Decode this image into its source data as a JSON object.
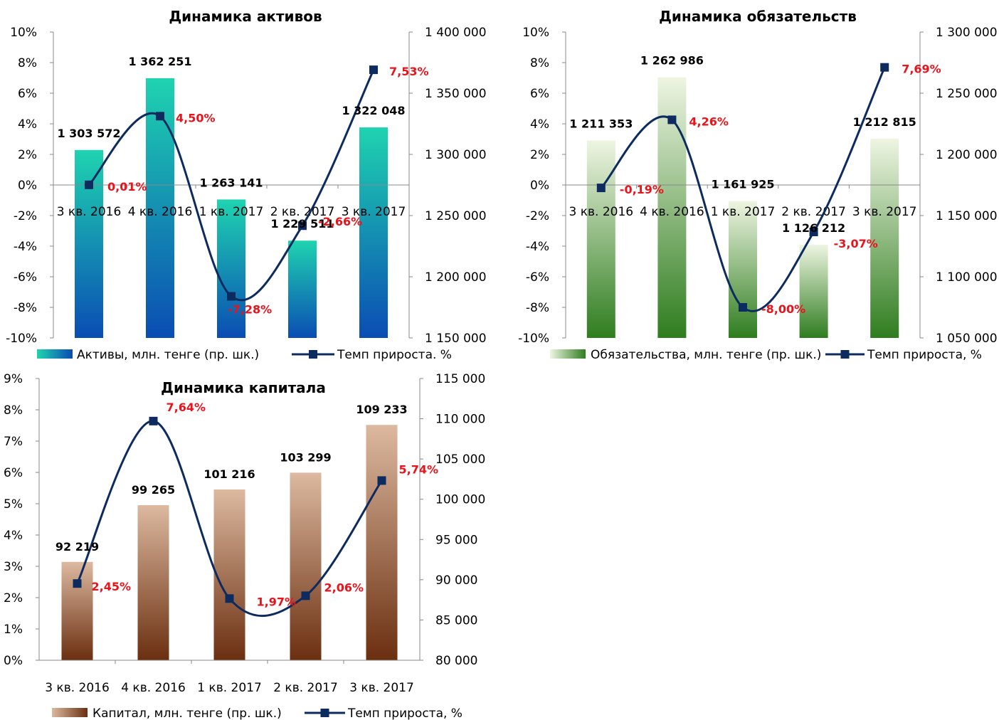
{
  "chart_data": [
    {
      "id": "assets",
      "type": "bar",
      "title": "Динамика активов",
      "categories": [
        "3 кв. 2016",
        "4 кв. 2016",
        "1 кв. 2017",
        "2 кв. 2017",
        "3 кв. 2017"
      ],
      "bar_series": {
        "name": "Активы, млн. тенге (пр. шк.)",
        "values": [
          1303572,
          1362251,
          1263141,
          1229511,
          1322048
        ],
        "labels": [
          "1 303 572",
          "1 362 251",
          "1 263 141",
          "1 229 511",
          "1 322 048"
        ],
        "axis": "right",
        "colors": [
          "#1fd3b0",
          "#0a4db3"
        ]
      },
      "line_series": {
        "name": "Темп прироста. %",
        "values": [
          0.01,
          4.5,
          -7.28,
          -2.66,
          7.53
        ],
        "labels": [
          "0,01%",
          "4,50%",
          "-7,28%",
          "-2,66%",
          "7,53%"
        ],
        "axis": "left",
        "color": "#0d2b5e"
      },
      "y_left": {
        "min": -10,
        "max": 10,
        "ticks": [
          "-10%",
          "-8%",
          "-6%",
          "-4%",
          "-2%",
          "0%",
          "2%",
          "4%",
          "6%",
          "8%",
          "10%"
        ]
      },
      "y_right": {
        "min": 1150000,
        "max": 1400000,
        "ticks": [
          "1 150 000",
          "1 200 000",
          "1 250 000",
          "1 300 000",
          "1 350 000",
          "1 400 000"
        ]
      },
      "category_axis_at": 0,
      "legend_position": "bottom"
    },
    {
      "id": "liabilities",
      "type": "bar",
      "title": "Динамика обязательств",
      "categories": [
        "3 кв. 2016",
        "4 кв. 2016",
        "1 кв. 2017",
        "2 кв. 2017",
        "3 кв. 2017"
      ],
      "bar_series": {
        "name": "Обязательства, млн. тенге (пр. шк.)",
        "values": [
          1211353,
          1262986,
          1161925,
          1126212,
          1212815
        ],
        "labels": [
          "1 211 353",
          "1 262 986",
          "1 161 925",
          "1 126 212",
          "1 212 815"
        ],
        "axis": "right",
        "colors": [
          "#eef5e2",
          "#2f7d1f"
        ]
      },
      "line_series": {
        "name": "Темп прироста, %",
        "values": [
          -0.19,
          4.26,
          -8.0,
          -3.07,
          7.69
        ],
        "labels": [
          "-0,19%",
          "4,26%",
          "-8,00%",
          "-3,07%",
          "7,69%"
        ],
        "axis": "left",
        "color": "#0d2b5e"
      },
      "y_left": {
        "min": -10,
        "max": 10,
        "ticks": [
          "-10%",
          "-8%",
          "-6%",
          "-4%",
          "-2%",
          "0%",
          "2%",
          "4%",
          "6%",
          "8%",
          "10%"
        ]
      },
      "y_right": {
        "min": 1050000,
        "max": 1300000,
        "ticks": [
          "1 050 000",
          "1 100 000",
          "1 150 000",
          "1 200 000",
          "1 250 000",
          "1 300 000"
        ]
      },
      "category_axis_at": 0,
      "legend_position": "bottom"
    },
    {
      "id": "capital",
      "type": "bar",
      "title": "Динамика капитала",
      "categories": [
        "3 кв. 2016",
        "4 кв. 2016",
        "1 кв. 2017",
        "2 кв. 2017",
        "3 кв. 2017"
      ],
      "bar_series": {
        "name": "Капитал, млн. тенге (пр. шк.)",
        "values": [
          92219,
          99265,
          101216,
          103299,
          109233
        ],
        "labels": [
          "92 219",
          "99 265",
          "101 216",
          "103 299",
          "109 233"
        ],
        "axis": "right",
        "colors": [
          "#dcb9a0",
          "#6b2f10"
        ]
      },
      "line_series": {
        "name": "Темп прироста, %",
        "values": [
          2.45,
          7.64,
          1.97,
          2.06,
          5.74
        ],
        "labels": [
          "2,45%",
          "7,64%",
          "1,97%",
          "2,06%",
          "5,74%"
        ],
        "axis": "left",
        "color": "#0d2b5e"
      },
      "y_left": {
        "min": 0,
        "max": 9,
        "ticks": [
          "0%",
          "1%",
          "2%",
          "3%",
          "4%",
          "5%",
          "6%",
          "7%",
          "8%",
          "9%"
        ]
      },
      "y_right": {
        "min": 80000,
        "max": 115000,
        "ticks": [
          "80 000",
          "85 000",
          "90 000",
          "95 000",
          "100 000",
          "105 000",
          "110 000",
          "115 000"
        ]
      },
      "category_axis_at": 0,
      "legend_position": "bottom"
    }
  ],
  "colors": {
    "percent_label": "#e8131b",
    "line": "#0d2b5e",
    "axis": "#888888"
  }
}
